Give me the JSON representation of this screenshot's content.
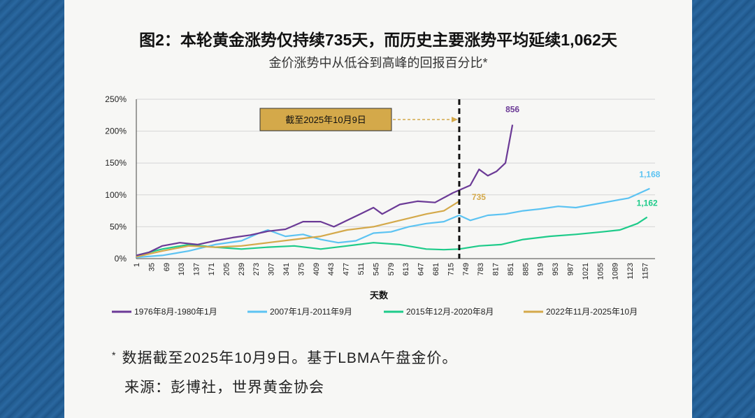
{
  "header": {
    "title": "图2：本轮黄金涨势仅持续735天，而历史主要涨势平均延续1,062天",
    "subtitle": "金价涨势中从低谷到高峰的回报百分比*"
  },
  "footer": {
    "star": "*",
    "note": "数据截至2025年10月9日。基于LBMA午盘金价。",
    "source": "来源：彭博社，世界黄金协会"
  },
  "chart_data": {
    "type": "line",
    "xlabel": "天数",
    "xlim": [
      1,
      1180
    ],
    "ylim": [
      0,
      250
    ],
    "y_ticks": [
      "0%",
      "50%",
      "100%",
      "150%",
      "200%",
      "250%"
    ],
    "x_ticks": [
      "1",
      "35",
      "69",
      "103",
      "137",
      "171",
      "205",
      "239",
      "273",
      "307",
      "341",
      "375",
      "409",
      "443",
      "477",
      "511",
      "545",
      "579",
      "613",
      "647",
      "681",
      "715",
      "749",
      "783",
      "817",
      "851",
      "885",
      "919",
      "953",
      "987",
      "1021",
      "1055",
      "1089",
      "1123",
      "1157"
    ],
    "grid": "horizontal",
    "legend_position": "bottom",
    "vline": {
      "x": 735,
      "label": "截至2025年10月9日"
    },
    "colors": {
      "s1": "#6b3a96",
      "s2": "#5cc3f2",
      "s3": "#1ecb8a",
      "s4": "#d4a94a"
    },
    "series": [
      {
        "name": "1976年8月-1980年1月",
        "end_label": "856",
        "x": [
          1,
          30,
          60,
          100,
          140,
          180,
          220,
          260,
          300,
          340,
          380,
          420,
          450,
          480,
          510,
          540,
          560,
          600,
          640,
          680,
          720,
          760,
          780,
          800,
          820,
          840,
          856
        ],
        "y": [
          5,
          10,
          20,
          25,
          22,
          28,
          33,
          37,
          43,
          46,
          58,
          58,
          50,
          60,
          70,
          80,
          70,
          85,
          90,
          88,
          103,
          115,
          140,
          130,
          137,
          150,
          210
        ]
      },
      {
        "name": "2007年1月-2011年9月",
        "end_label": "1,168",
        "x": [
          1,
          60,
          120,
          180,
          240,
          280,
          300,
          340,
          380,
          420,
          460,
          500,
          540,
          580,
          620,
          660,
          700,
          735,
          760,
          800,
          840,
          880,
          920,
          960,
          1000,
          1040,
          1080,
          1120,
          1168
        ],
        "y": [
          2,
          5,
          12,
          22,
          28,
          40,
          45,
          35,
          38,
          30,
          25,
          28,
          40,
          42,
          50,
          55,
          58,
          68,
          60,
          68,
          70,
          75,
          78,
          82,
          80,
          85,
          90,
          95,
          110
        ]
      },
      {
        "name": "2015年12月-2020年8月",
        "end_label": "1,162",
        "x": [
          1,
          60,
          120,
          180,
          240,
          300,
          360,
          420,
          480,
          540,
          600,
          660,
          700,
          735,
          780,
          830,
          880,
          940,
          1000,
          1060,
          1100,
          1140,
          1162
        ],
        "y": [
          5,
          15,
          22,
          18,
          15,
          18,
          20,
          15,
          20,
          25,
          22,
          15,
          14,
          15,
          20,
          22,
          30,
          35,
          38,
          42,
          45,
          55,
          65
        ]
      },
      {
        "name": "2022年11月-2025年10月",
        "end_label": "735",
        "x": [
          1,
          60,
          120,
          180,
          240,
          300,
          360,
          420,
          480,
          540,
          600,
          660,
          700,
          735
        ],
        "y": [
          3,
          12,
          20,
          18,
          20,
          25,
          30,
          35,
          45,
          50,
          60,
          70,
          75,
          90
        ]
      }
    ]
  }
}
